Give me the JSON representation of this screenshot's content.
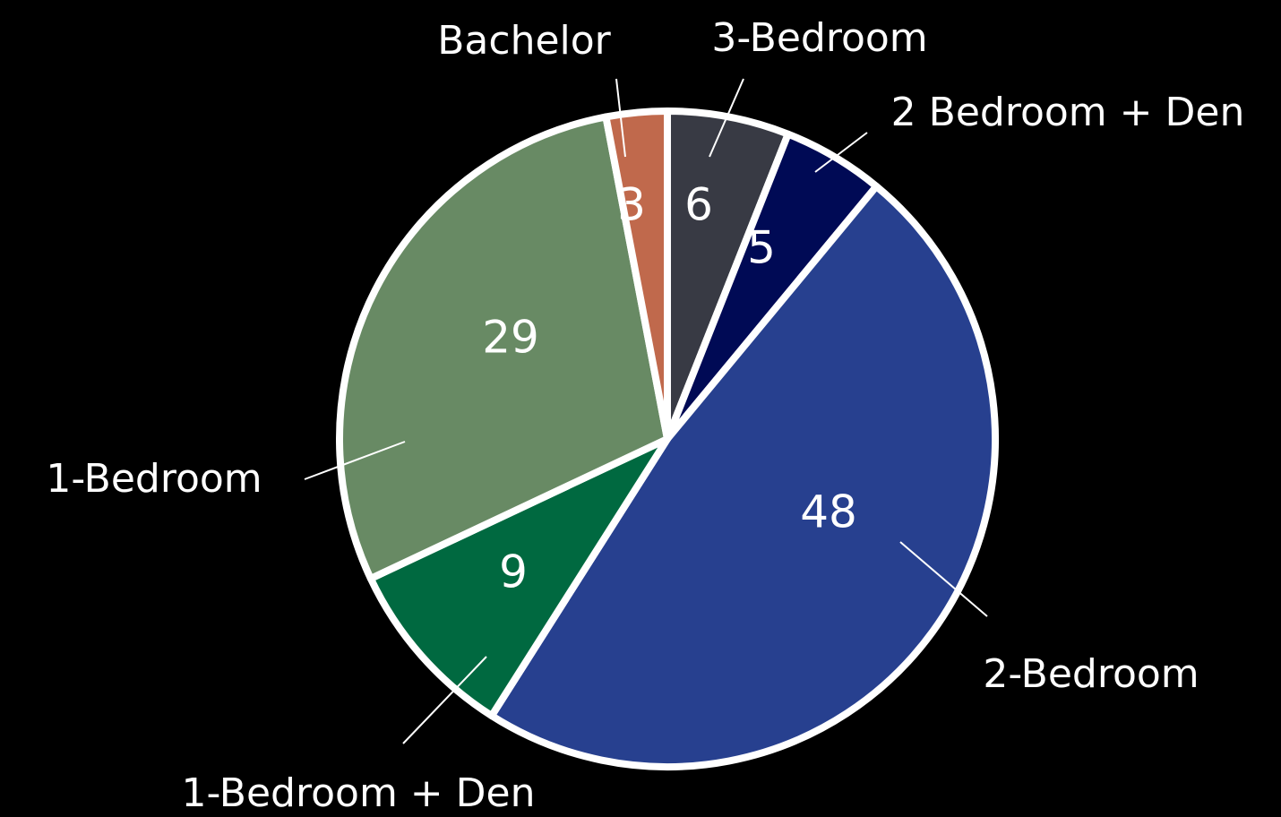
{
  "chart_data": {
    "type": "pie",
    "categories": [
      "3-Bedroom",
      "2 Bedroom + Den",
      "2-Bedroom",
      "1-Bedroom + Den",
      "1-Bedroom",
      "Bachelor"
    ],
    "values": [
      6,
      5,
      48,
      9,
      29,
      3
    ],
    "colors": [
      "#383a44",
      "#000a55",
      "#27408f",
      "#006940",
      "#688a64",
      "#c0694c"
    ]
  }
}
